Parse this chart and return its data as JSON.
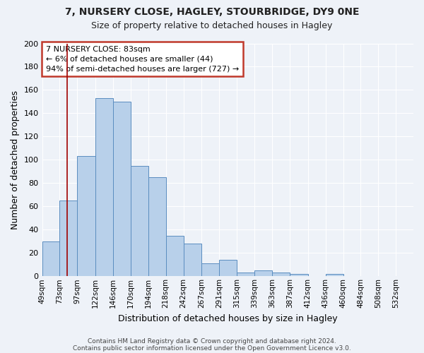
{
  "title1": "7, NURSERY CLOSE, HAGLEY, STOURBRIDGE, DY9 0NE",
  "title2": "Size of property relative to detached houses in Hagley",
  "xlabel": "Distribution of detached houses by size in Hagley",
  "ylabel": "Number of detached properties",
  "bin_labels": [
    "49sqm",
    "73sqm",
    "97sqm",
    "122sqm",
    "146sqm",
    "170sqm",
    "194sqm",
    "218sqm",
    "242sqm",
    "267sqm",
    "291sqm",
    "315sqm",
    "339sqm",
    "363sqm",
    "387sqm",
    "412sqm",
    "436sqm",
    "460sqm",
    "484sqm",
    "508sqm",
    "532sqm"
  ],
  "bin_edges": [
    49,
    73,
    97,
    122,
    146,
    170,
    194,
    218,
    242,
    267,
    291,
    315,
    339,
    363,
    387,
    412,
    436,
    460,
    484,
    508,
    532,
    556
  ],
  "bar_heights": [
    30,
    65,
    103,
    153,
    150,
    95,
    85,
    35,
    28,
    11,
    14,
    3,
    5,
    3,
    2,
    0,
    2,
    0,
    0,
    0,
    0
  ],
  "bar_color": "#b8d0ea",
  "bar_edge_color": "#5b8dc0",
  "property_line_x": 83,
  "property_line_color": "#a00000",
  "annotation_line1": "7 NURSERY CLOSE: 83sqm",
  "annotation_line2": "← 6% of detached houses are smaller (44)",
  "annotation_line3": "94% of semi-detached houses are larger (727) →",
  "annotation_box_color": "#c0392b",
  "ylim": [
    0,
    200
  ],
  "yticks": [
    0,
    20,
    40,
    60,
    80,
    100,
    120,
    140,
    160,
    180,
    200
  ],
  "footer1": "Contains HM Land Registry data © Crown copyright and database right 2024.",
  "footer2": "Contains public sector information licensed under the Open Government Licence v3.0.",
  "bg_color": "#eef2f8",
  "grid_color": "#ffffff"
}
